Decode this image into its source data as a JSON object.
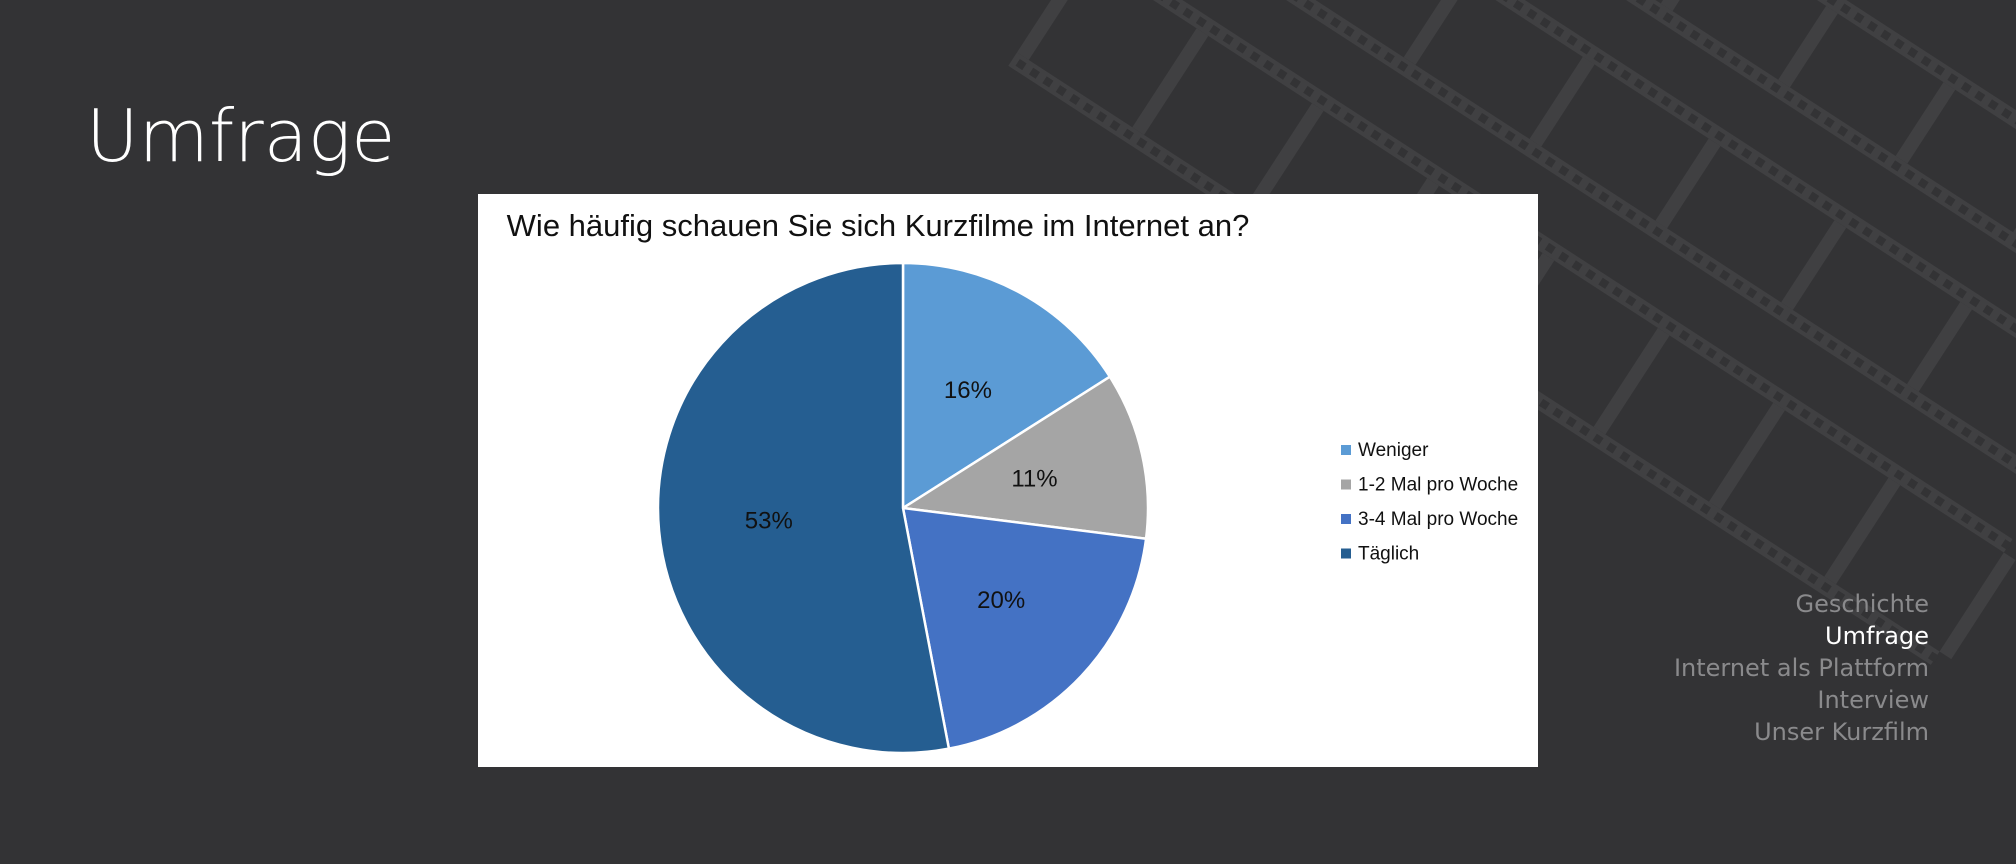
{
  "slide": {
    "title": "Umfrage"
  },
  "nav": {
    "items": [
      {
        "label": "Geschichte",
        "active": false
      },
      {
        "label": "Umfrage",
        "active": true
      },
      {
        "label": "Internet als Plattform",
        "active": false
      },
      {
        "label": "Interview",
        "active": false
      },
      {
        "label": "Unser Kurzfilm",
        "active": false
      }
    ]
  },
  "colors": {
    "background": "#333335",
    "decoration": "#424244",
    "nav_inactive": "#8a8a8c",
    "nav_active": "#ffffff"
  },
  "chart_data": {
    "type": "pie",
    "title": "Wie häufig schauen Sie sich Kurzfilme im Internet an?",
    "legend_position": "right",
    "start_angle_deg": 0,
    "direction": "clockwise",
    "slices": [
      {
        "name": "Weniger",
        "value": 16,
        "label": "16%",
        "color": "#5b9bd5"
      },
      {
        "name": "1-2 Mal pro Woche",
        "value": 11,
        "label": "11%",
        "color": "#a5a5a5"
      },
      {
        "name": "3-4 Mal pro Woche",
        "value": 20,
        "label": "20%",
        "color": "#4472c4"
      },
      {
        "name": "Täglich",
        "value": 53,
        "label": "53%",
        "color": "#255e91"
      }
    ]
  }
}
